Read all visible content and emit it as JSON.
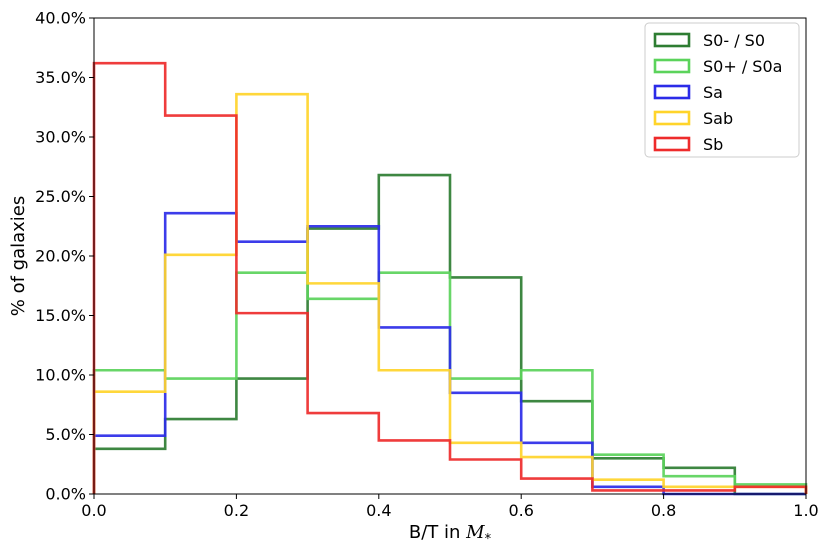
{
  "chart_data": {
    "type": "histogram-step",
    "title": "",
    "xlabel": "B/T in ",
    "xlabel_math": "M",
    "xlabel_sub": "*",
    "ylabel": "% of galaxies",
    "xlim": [
      0.0,
      1.0
    ],
    "ylim": [
      0.0,
      40.0
    ],
    "bin_edges": [
      0.0,
      0.1,
      0.2,
      0.3,
      0.4,
      0.5,
      0.6,
      0.7,
      0.8,
      0.9,
      1.0
    ],
    "x_ticks": [
      0.0,
      0.2,
      0.4,
      0.6,
      0.8,
      1.0
    ],
    "x_tick_labels": [
      "0.0",
      "0.2",
      "0.4",
      "0.6",
      "0.8",
      "1.0"
    ],
    "y_ticks": [
      0,
      5,
      10,
      15,
      20,
      25,
      30,
      35,
      40
    ],
    "y_tick_labels": [
      "0.0%",
      "5.0%",
      "10.0%",
      "15.0%",
      "20.0%",
      "25.0%",
      "30.0%",
      "35.0%",
      "40.0%"
    ],
    "legend_position": "top-right",
    "series": [
      {
        "name": "S0- / S0",
        "color": "#2e7d32",
        "values": [
          3.8,
          6.3,
          9.7,
          22.3,
          26.8,
          18.2,
          7.8,
          3.0,
          2.2,
          0.0
        ]
      },
      {
        "name": "S0+ / S0a",
        "color": "#5bd35b",
        "values": [
          10.4,
          9.7,
          18.6,
          16.4,
          18.6,
          9.7,
          10.4,
          3.3,
          1.5,
          0.8
        ]
      },
      {
        "name": "Sa",
        "color": "#2b2be8",
        "values": [
          4.9,
          23.6,
          21.2,
          22.5,
          14.0,
          8.5,
          4.3,
          0.6,
          0.0,
          0.0
        ]
      },
      {
        "name": "Sab",
        "color": "#ffd42a",
        "values": [
          8.6,
          20.1,
          33.6,
          17.7,
          10.4,
          4.3,
          3.1,
          1.2,
          0.6,
          0.6
        ]
      },
      {
        "name": "Sb",
        "color": "#ee2b2b",
        "values": [
          36.2,
          31.8,
          15.2,
          6.8,
          4.5,
          2.9,
          1.3,
          0.3,
          0.3,
          0.6
        ]
      }
    ]
  }
}
